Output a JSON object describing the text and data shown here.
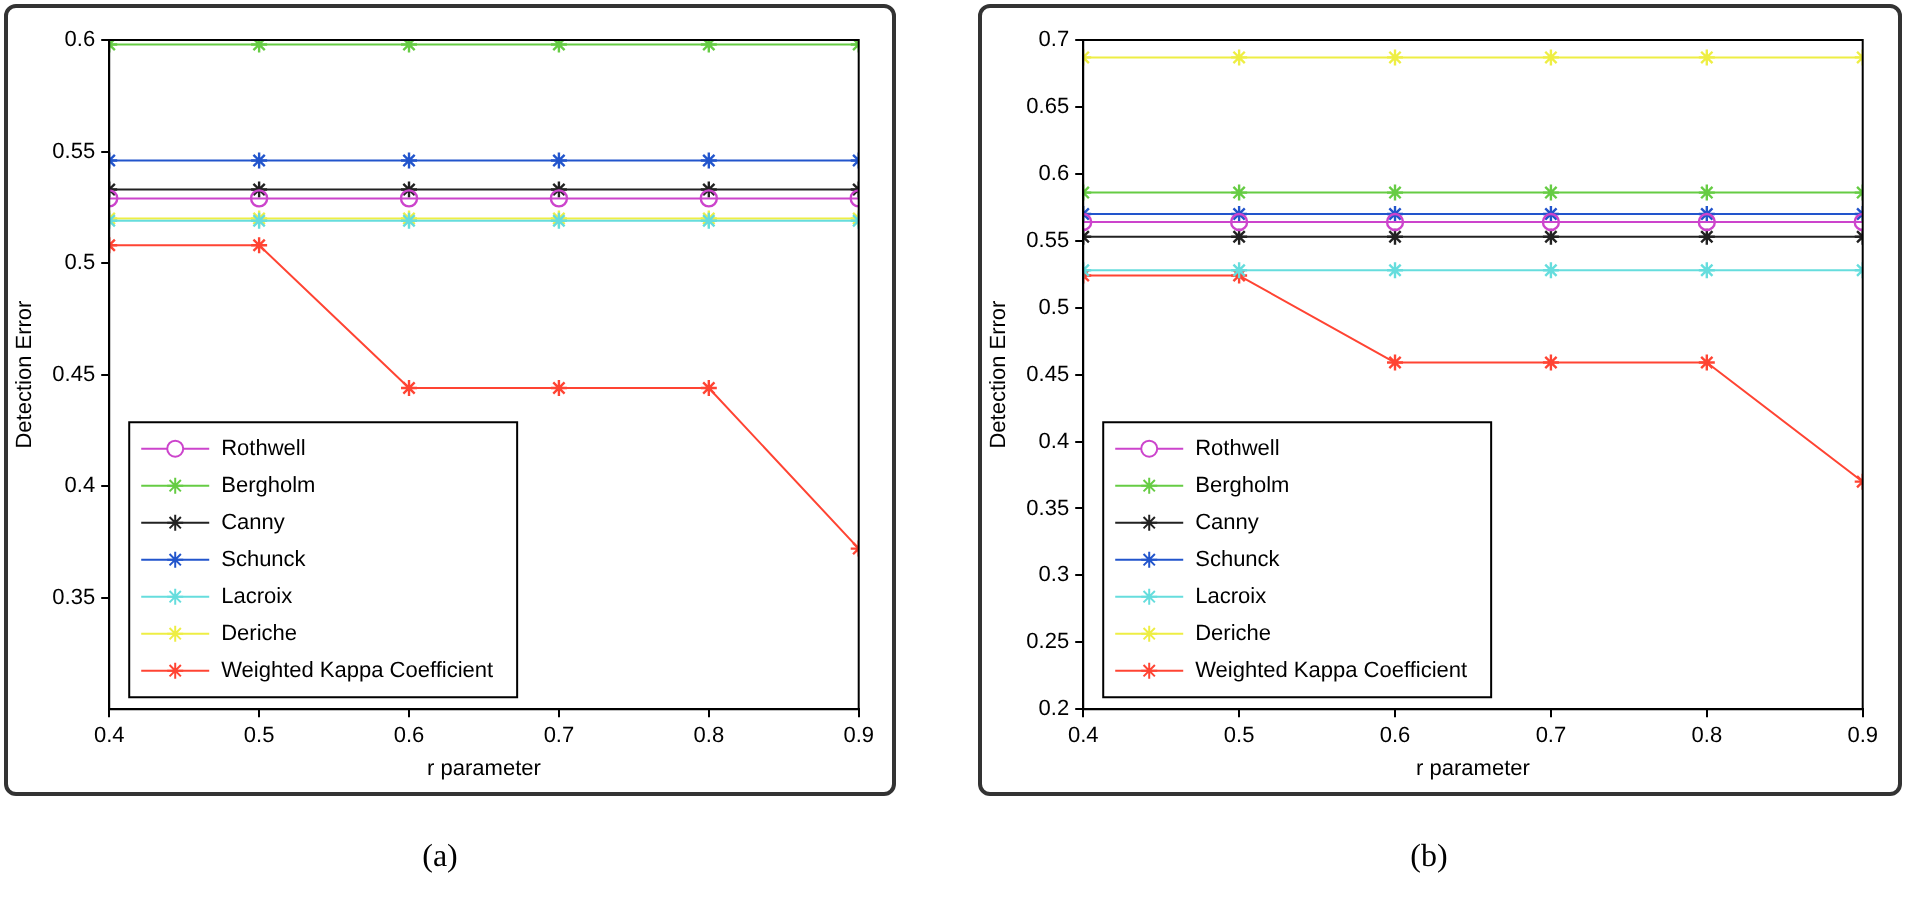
{
  "chart_data": [
    {
      "type": "line",
      "xlabel": "r parameter",
      "ylabel": "Detection Error",
      "x": [
        0.4,
        0.5,
        0.6,
        0.7,
        0.8,
        0.9
      ],
      "xlim": [
        0.4,
        0.9
      ],
      "xticks": [
        0.4,
        0.5,
        0.6,
        0.7,
        0.8,
        0.9
      ],
      "ylim": [
        0.3,
        0.6
      ],
      "yticks": [
        0.35,
        0.4,
        0.45,
        0.5,
        0.55,
        0.6
      ],
      "grid": false,
      "legend": "bottom left",
      "line_style": "solid",
      "annotations": [
        "(a)"
      ],
      "series": [
        {
          "name": "Rothwell",
          "color": "#cc44cc",
          "marker": "circle",
          "values": [
            0.529,
            0.529,
            0.529,
            0.529,
            0.529,
            0.529
          ]
        },
        {
          "name": "Bergholm",
          "color": "#66cc44",
          "marker": "cross",
          "values": [
            0.598,
            0.598,
            0.598,
            0.598,
            0.598,
            0.598
          ]
        },
        {
          "name": "Canny",
          "color": "#222222",
          "marker": "cross",
          "values": [
            0.533,
            0.533,
            0.533,
            0.533,
            0.533,
            0.533
          ]
        },
        {
          "name": "Schunck",
          "color": "#2255cc",
          "marker": "cross",
          "values": [
            0.546,
            0.546,
            0.546,
            0.546,
            0.546,
            0.546
          ]
        },
        {
          "name": "Lacroix",
          "color": "#66dddd",
          "marker": "cross",
          "values": [
            0.519,
            0.519,
            0.519,
            0.519,
            0.519,
            0.519
          ]
        },
        {
          "name": "Deriche",
          "color": "#eeee44",
          "marker": "cross",
          "values": [
            0.52,
            0.52,
            0.52,
            0.52,
            0.52,
            0.52
          ]
        },
        {
          "name": "Weighted Kappa Coefficient",
          "color": "#ff4433",
          "marker": "cross",
          "values": [
            0.508,
            0.508,
            0.444,
            0.444,
            0.444,
            0.372
          ]
        }
      ]
    },
    {
      "type": "line",
      "xlabel": "r parameter",
      "ylabel": "Detection Error",
      "x": [
        0.4,
        0.5,
        0.6,
        0.7,
        0.8,
        0.9
      ],
      "xlim": [
        0.4,
        0.9
      ],
      "xticks": [
        0.4,
        0.5,
        0.6,
        0.7,
        0.8,
        0.9
      ],
      "ylim": [
        0.2,
        0.7
      ],
      "yticks": [
        0.2,
        0.25,
        0.3,
        0.35,
        0.4,
        0.45,
        0.5,
        0.55,
        0.6,
        0.65,
        0.7
      ],
      "grid": false,
      "legend": "bottom left",
      "line_style": "solid",
      "annotations": [
        "(b)"
      ],
      "series": [
        {
          "name": "Rothwell",
          "color": "#cc44cc",
          "marker": "circle",
          "values": [
            0.564,
            0.564,
            0.564,
            0.564,
            0.564,
            0.564
          ]
        },
        {
          "name": "Bergholm",
          "color": "#66cc44",
          "marker": "cross",
          "values": [
            0.586,
            0.586,
            0.586,
            0.586,
            0.586,
            0.586
          ]
        },
        {
          "name": "Canny",
          "color": "#222222",
          "marker": "cross",
          "values": [
            0.553,
            0.553,
            0.553,
            0.553,
            0.553,
            0.553
          ]
        },
        {
          "name": "Schunck",
          "color": "#2255cc",
          "marker": "cross",
          "values": [
            0.57,
            0.57,
            0.57,
            0.57,
            0.57,
            0.57
          ]
        },
        {
          "name": "Lacroix",
          "color": "#66dddd",
          "marker": "cross",
          "values": [
            0.528,
            0.528,
            0.528,
            0.528,
            0.528,
            0.528
          ]
        },
        {
          "name": "Deriche",
          "color": "#eeee44",
          "marker": "cross",
          "values": [
            0.687,
            0.687,
            0.687,
            0.687,
            0.687,
            0.687
          ]
        },
        {
          "name": "Weighted Kappa Coefficient",
          "color": "#ff4433",
          "marker": "cross",
          "values": [
            0.524,
            0.524,
            0.459,
            0.459,
            0.459,
            0.37
          ]
        }
      ]
    }
  ]
}
